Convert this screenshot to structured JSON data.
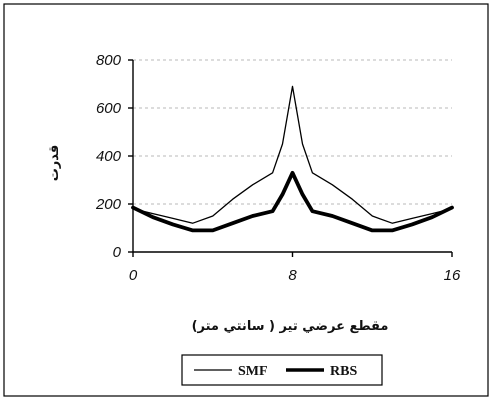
{
  "chart_data": {
    "type": "line",
    "xlabel": "مقطع عرضي تير ( سانتي متر)",
    "ylabel": "قدرت",
    "x_ticks": [
      "0",
      "8",
      "16"
    ],
    "y_ticks": [
      "0",
      "200",
      "400",
      "600",
      "800"
    ],
    "xlim": [
      0,
      16
    ],
    "ylim": [
      0,
      800
    ],
    "grid": "horizontal dashed",
    "legend_position": "bottom",
    "series": [
      {
        "name": "SMF",
        "color": "#000000",
        "line_weight": "thin",
        "x": [
          0,
          1,
          2,
          3,
          4,
          5,
          6,
          7,
          7.5,
          8,
          8.5,
          9,
          10,
          11,
          12,
          13,
          14,
          15,
          16
        ],
        "y": [
          180,
          160,
          140,
          120,
          150,
          220,
          280,
          330,
          450,
          690,
          450,
          330,
          280,
          220,
          150,
          120,
          140,
          160,
          180
        ]
      },
      {
        "name": "RBS",
        "color": "#000000",
        "line_weight": "thick",
        "x": [
          0,
          1,
          2,
          3,
          4,
          5,
          6,
          7,
          7.5,
          8,
          8.5,
          9,
          10,
          11,
          12,
          13,
          14,
          15,
          16
        ],
        "y": [
          185,
          145,
          115,
          90,
          90,
          120,
          150,
          170,
          240,
          330,
          240,
          170,
          150,
          120,
          90,
          90,
          115,
          145,
          185
        ]
      }
    ]
  }
}
